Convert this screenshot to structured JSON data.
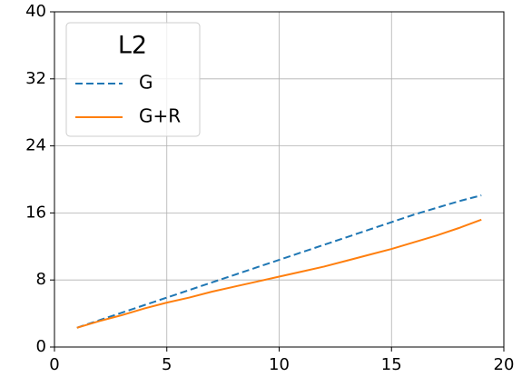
{
  "chart_data": {
    "type": "line",
    "legend_title": "L2",
    "legend_loc": "upper left",
    "grid": true,
    "x": [
      1,
      2,
      3,
      4,
      5,
      6,
      7,
      8,
      9,
      10,
      11,
      12,
      13,
      14,
      15,
      16,
      17,
      18,
      19
    ],
    "xlim": [
      0,
      20
    ],
    "xticks": [
      0,
      5,
      10,
      15,
      20
    ],
    "ylim": [
      0,
      40
    ],
    "yticks": [
      0,
      8,
      16,
      24,
      32,
      40
    ],
    "series": [
      {
        "name": "G",
        "color": "#1f77b4",
        "linestyle": "dashed",
        "values": [
          2.3,
          3.2,
          4.1,
          5.0,
          5.9,
          6.8,
          7.7,
          8.6,
          9.5,
          10.4,
          11.3,
          12.2,
          13.1,
          14.0,
          14.9,
          15.8,
          16.6,
          17.4,
          18.1
        ]
      },
      {
        "name": "G+R",
        "color": "#ff7f0e",
        "linestyle": "solid",
        "values": [
          2.3,
          3.1,
          3.8,
          4.6,
          5.3,
          5.9,
          6.6,
          7.2,
          7.8,
          8.4,
          9.0,
          9.6,
          10.3,
          11.0,
          11.7,
          12.5,
          13.3,
          14.2,
          15.2
        ]
      }
    ]
  }
}
